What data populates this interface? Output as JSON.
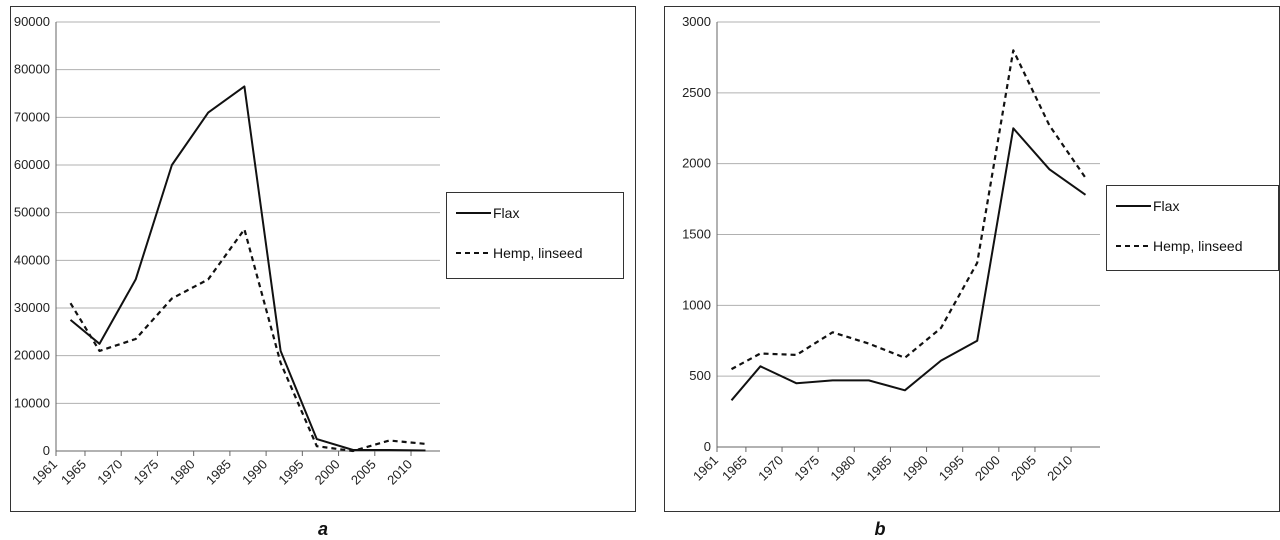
{
  "chart_data": [
    {
      "type": "line",
      "panel_label": "a",
      "categories": [
        "1961",
        "1965",
        "1970",
        "1975",
        "1980",
        "1985",
        "1990",
        "1995",
        "2000",
        "2005",
        "2010"
      ],
      "x": [
        1963,
        1967,
        1972,
        1977,
        1982,
        1987,
        1992,
        1997,
        2002,
        2007,
        2012
      ],
      "ylim": [
        0,
        90000
      ],
      "yticks": [
        0,
        10000,
        20000,
        30000,
        40000,
        50000,
        60000,
        70000,
        80000,
        90000
      ],
      "grid": true,
      "legend_position": "right",
      "series": [
        {
          "name": "Flax",
          "style": "solid",
          "values": [
            27500,
            22500,
            36000,
            60000,
            71000,
            76500,
            21000,
            2500,
            200,
            200,
            100
          ]
        },
        {
          "name": "Hemp, linseed",
          "style": "dashed",
          "values": [
            31000,
            21000,
            23500,
            32000,
            36000,
            46500,
            18500,
            1000,
            0,
            2200,
            1500
          ]
        }
      ]
    },
    {
      "type": "line",
      "panel_label": "b",
      "categories": [
        "1961",
        "1965",
        "1970",
        "1975",
        "1980",
        "1985",
        "1990",
        "1995",
        "2000",
        "2005",
        "2010"
      ],
      "x": [
        1963,
        1967,
        1972,
        1977,
        1982,
        1987,
        1992,
        1997,
        2002,
        2007,
        2012
      ],
      "ylim": [
        0,
        3000
      ],
      "yticks": [
        0,
        500,
        1000,
        1500,
        2000,
        2500,
        3000
      ],
      "grid": true,
      "legend_position": "right",
      "series": [
        {
          "name": "Flax",
          "style": "solid",
          "values": [
            330,
            570,
            450,
            470,
            470,
            400,
            610,
            750,
            2250,
            1960,
            1780
          ]
        },
        {
          "name": "Hemp, linseed",
          "style": "dashed",
          "values": [
            550,
            660,
            650,
            810,
            730,
            630,
            840,
            1300,
            2800,
            2270,
            1900
          ]
        }
      ]
    }
  ]
}
